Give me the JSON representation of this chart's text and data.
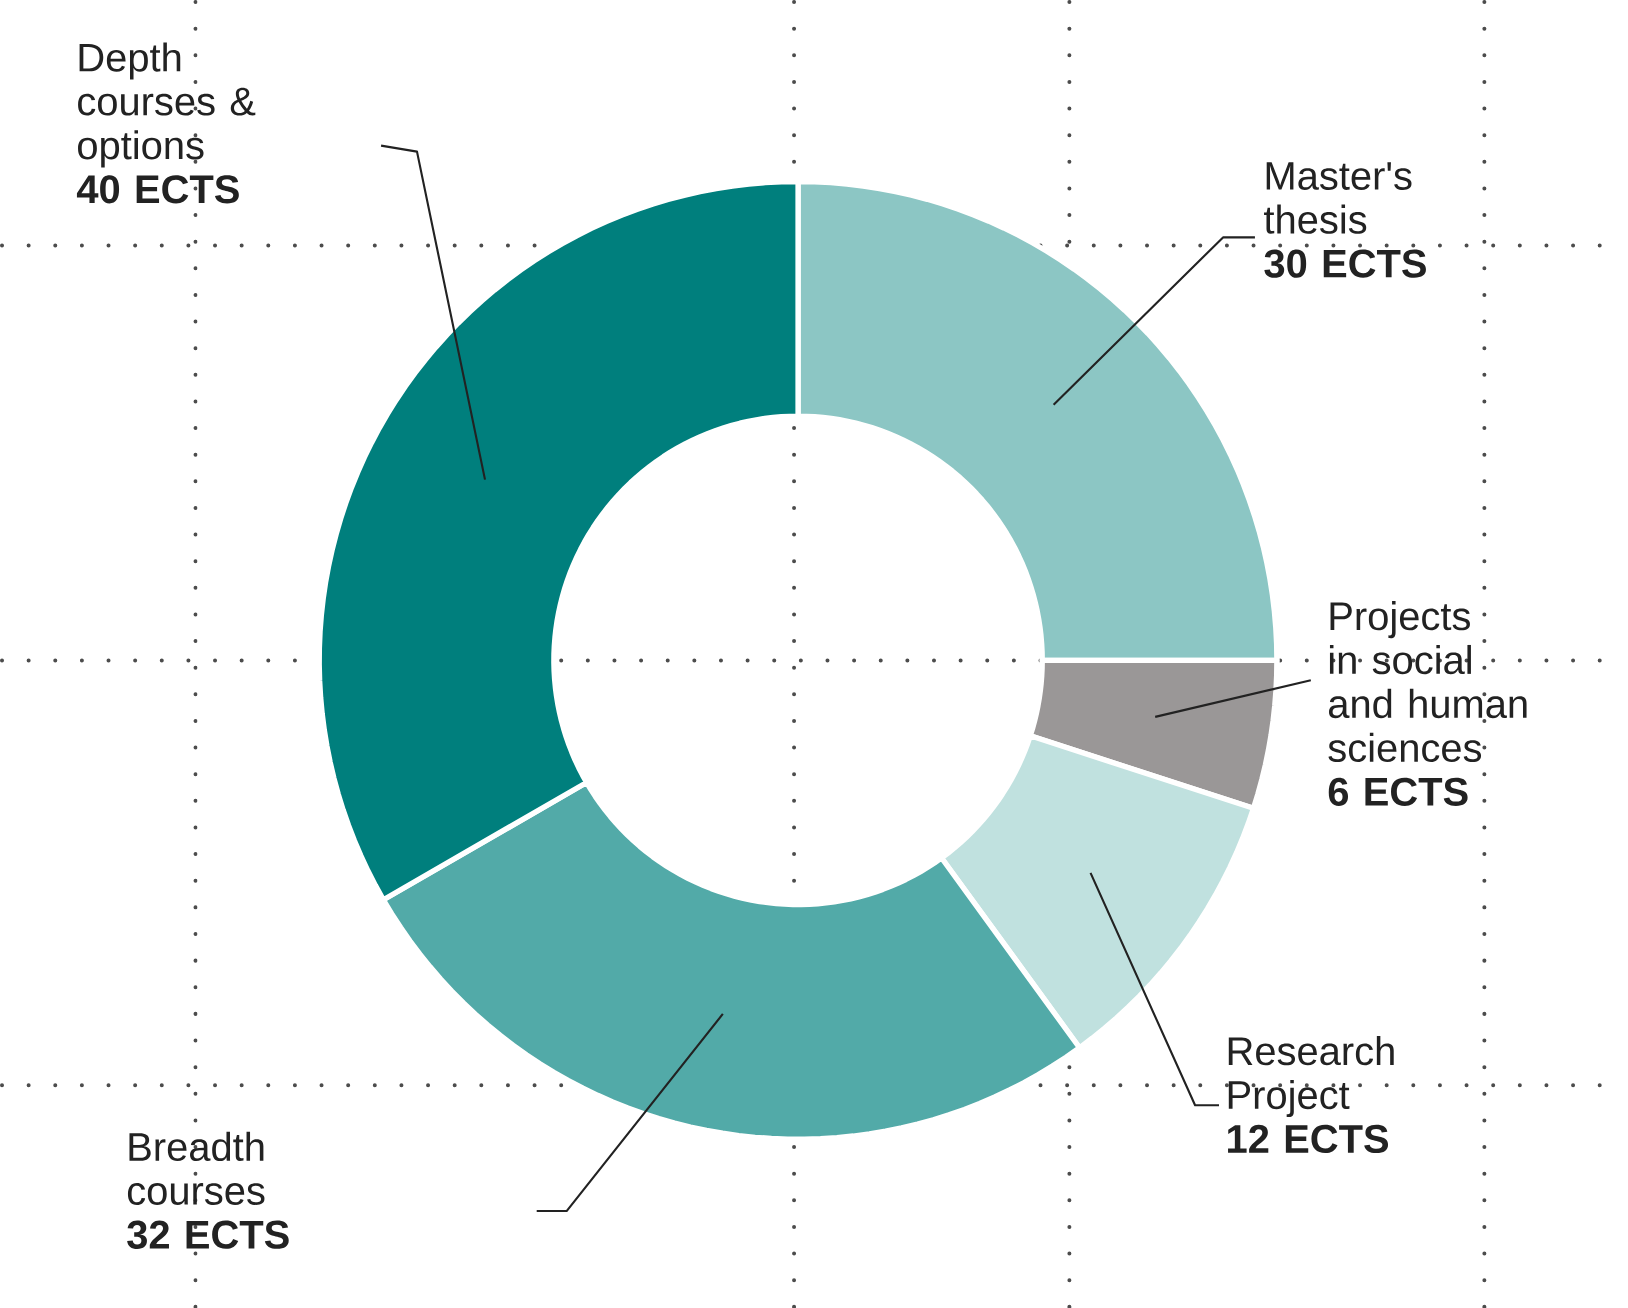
{
  "chart_data": {
    "type": "donut",
    "categories": [
      "Master's thesis",
      "Projects in social and human sciences",
      "Research Project",
      "Breadth courses",
      "Depth courses & options"
    ],
    "values": [
      30,
      6,
      12,
      32,
      40
    ],
    "value_labels": [
      "30 ECTS",
      "6 ECTS",
      "12 ECTS",
      "32 ECTS",
      "40 ECTS"
    ],
    "colors": [
      "#8cc6c4",
      "#9a9797",
      "#c0e1df",
      "#52aaa8",
      "#007f7d"
    ],
    "grid": true
  }
}
